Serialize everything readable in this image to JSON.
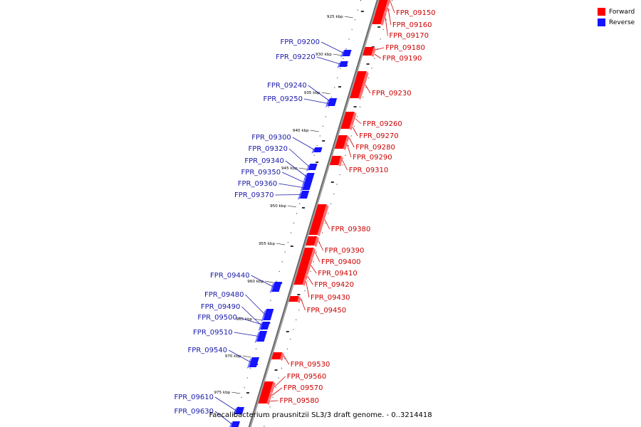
{
  "legend": {
    "forward_label": "Forward",
    "reverse_label": "Reverse",
    "forward_color": "#ff0000",
    "reverse_color": "#1414ff"
  },
  "caption": "Faecalibacterium prausnitzii SL3/3 draft genome. - 0..3214418",
  "scale_labels": [
    "925 kbp",
    "930 kbp",
    "935 kbp",
    "940 kbp",
    "945 kbp",
    "950 kbp",
    "955 kbp",
    "960 kbp",
    "965 kbp",
    "970 kbp",
    "975 kbp"
  ],
  "forward_genes": [
    "FPR_09150",
    "FPR_09160",
    "FPR_09170",
    "FPR_09180",
    "FPR_09190",
    "FPR_09230",
    "FPR_09260",
    "FPR_09270",
    "FPR_09280",
    "FPR_09290",
    "FPR_09310",
    "FPR_09380",
    "FPR_09390",
    "FPR_09400",
    "FPR_09410",
    "FPR_09420",
    "FPR_09430",
    "FPR_09450",
    "FPR_09530",
    "FPR_09560",
    "FPR_09570",
    "FPR_09580"
  ],
  "reverse_genes": [
    "FPR_09200",
    "FPR_09220",
    "FPR_09240",
    "FPR_09250",
    "FPR_09300",
    "FPR_09320",
    "FPR_09340",
    "FPR_09350",
    "FPR_09360",
    "FPR_09370",
    "FPR_09440",
    "FPR_09480",
    "FPR_09490",
    "FPR_09500",
    "FPR_09510",
    "FPR_09540",
    "FPR_09610",
    "FPR_09630"
  ]
}
